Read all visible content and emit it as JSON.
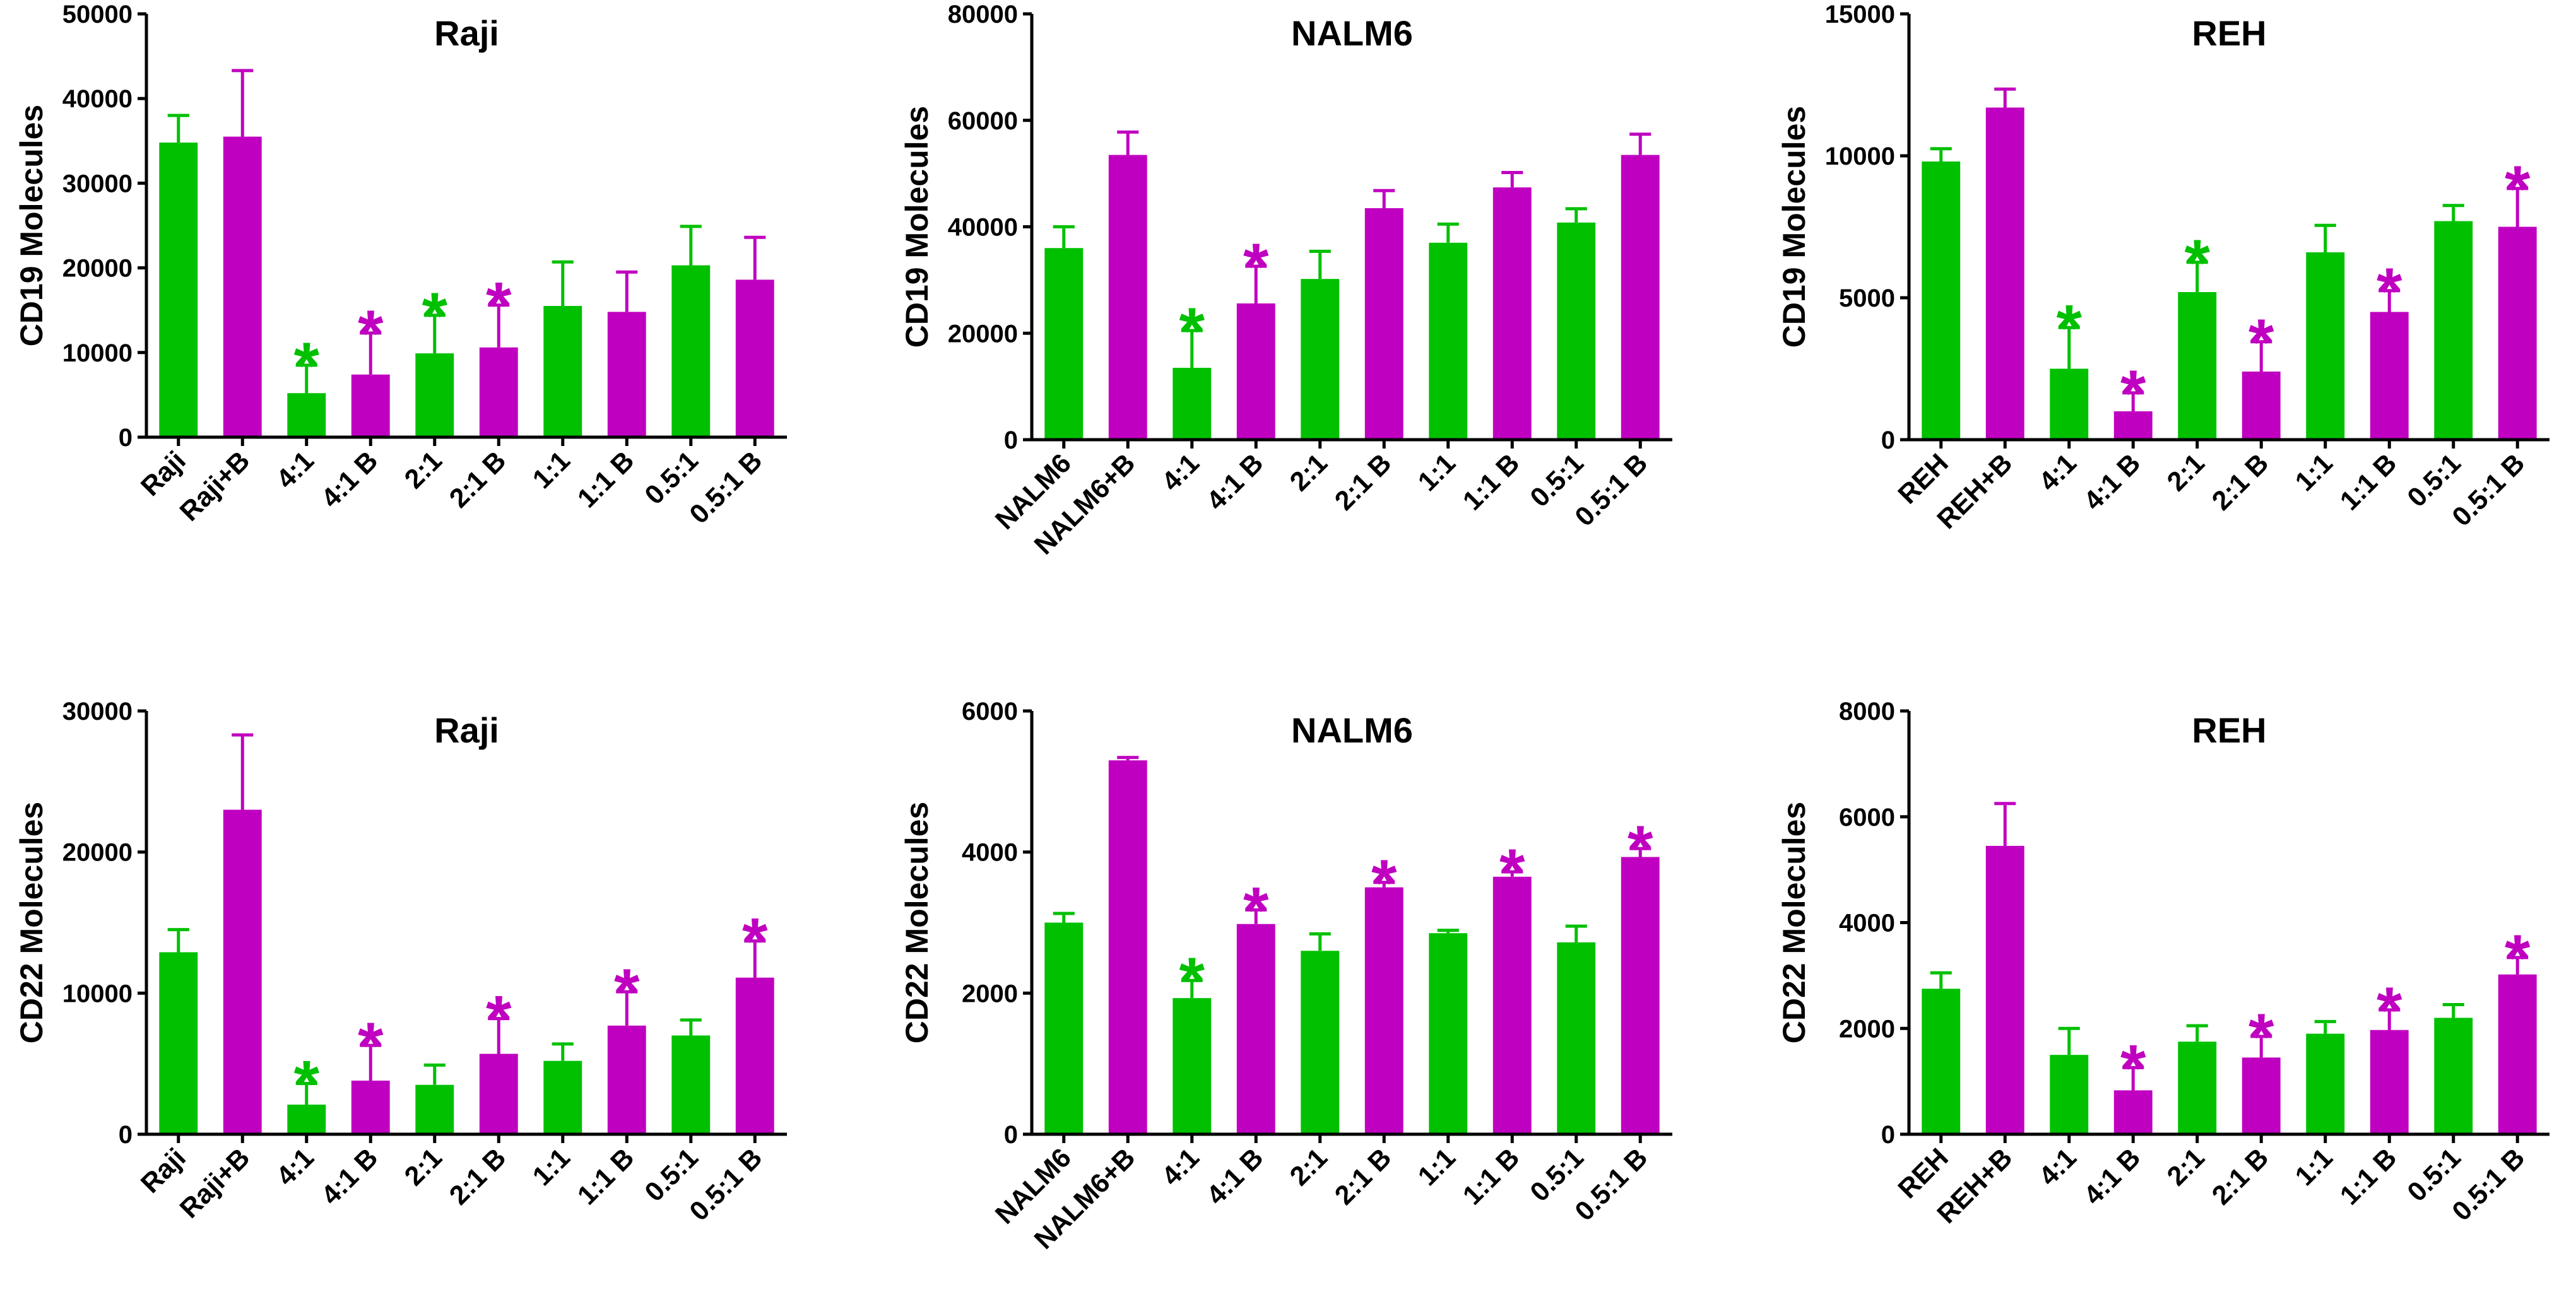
{
  "colors": {
    "green": "#00C000",
    "magenta": "#C000C0",
    "axis": "#000000"
  },
  "chart_data": [
    {
      "type": "bar",
      "title": "Raji",
      "ylabel": "CD19 Molecules",
      "xlabel": "",
      "ylim": [
        0,
        50000
      ],
      "yticks": [
        0,
        10000,
        20000,
        30000,
        40000,
        50000
      ],
      "yticklabels": [
        "0",
        "10000",
        "20000",
        "30000",
        "40000",
        "50000"
      ],
      "categories": [
        "Raji",
        "Raji+B",
        "4:1",
        "4:1 B",
        "2:1",
        "2:1 B",
        "1:1",
        "1:1 B",
        "0.5:1",
        "0.5:1 B"
      ],
      "values": [
        34800,
        35500,
        5200,
        7400,
        9900,
        10600,
        15500,
        14800,
        20300,
        18600
      ],
      "errors": [
        3200,
        7800,
        3300,
        4900,
        4500,
        5000,
        5200,
        4700,
        4600,
        5000
      ],
      "colors": [
        "green",
        "magenta",
        "green",
        "magenta",
        "green",
        "magenta",
        "green",
        "magenta",
        "green",
        "magenta"
      ],
      "significance": [
        "",
        "",
        "*",
        "*",
        "*",
        "*",
        "",
        "",
        "",
        ""
      ]
    },
    {
      "type": "bar",
      "title": "NALM6",
      "ylabel": "CD19 Molecules",
      "xlabel": "",
      "ylim": [
        0,
        80000
      ],
      "yticks": [
        0,
        20000,
        40000,
        60000,
        80000
      ],
      "yticklabels": [
        "0",
        "20000",
        "40000",
        "60000",
        "80000"
      ],
      "categories": [
        "NALM6",
        "NALM6+B",
        "4:1",
        "4:1 B",
        "2:1",
        "2:1 B",
        "1:1",
        "1:1 B",
        "0.5:1",
        "0.5:1 B"
      ],
      "values": [
        36000,
        53500,
        13500,
        25600,
        30200,
        43500,
        37000,
        47400,
        40800,
        53500
      ],
      "errors": [
        4000,
        4300,
        7000,
        7000,
        5200,
        3300,
        3500,
        2800,
        2600,
        3900
      ],
      "colors": [
        "green",
        "magenta",
        "green",
        "magenta",
        "green",
        "magenta",
        "green",
        "magenta",
        "green",
        "magenta"
      ],
      "significance": [
        "",
        "",
        "*",
        "*",
        "",
        "",
        "",
        "",
        "",
        ""
      ]
    },
    {
      "type": "bar",
      "title": "REH",
      "ylabel": "CD19 Molecules",
      "xlabel": "",
      "ylim": [
        0,
        15000
      ],
      "yticks": [
        0,
        5000,
        10000,
        15000
      ],
      "yticklabels": [
        "0",
        "5000",
        "10000",
        "15000"
      ],
      "categories": [
        "REH",
        "REH+B",
        "4:1",
        "4:1 B",
        "2:1",
        "2:1 B",
        "1:1",
        "1:1 B",
        "0.5:1",
        "0.5:1 B"
      ],
      "values": [
        9800,
        11700,
        2500,
        1000,
        5200,
        2400,
        6600,
        4500,
        7700,
        7500
      ],
      "errors": [
        450,
        650,
        1450,
        650,
        1050,
        1050,
        950,
        750,
        550,
        1350
      ],
      "colors": [
        "green",
        "magenta",
        "green",
        "magenta",
        "green",
        "magenta",
        "green",
        "magenta",
        "green",
        "magenta"
      ],
      "significance": [
        "",
        "",
        "*",
        "*",
        "*",
        "*",
        "",
        "*",
        "",
        "*"
      ]
    },
    {
      "type": "bar",
      "title": "Raji",
      "ylabel": "CD22 Molecules",
      "xlabel": "",
      "ylim": [
        0,
        30000
      ],
      "yticks": [
        0,
        10000,
        20000,
        30000
      ],
      "yticklabels": [
        "0",
        "10000",
        "20000",
        "30000"
      ],
      "categories": [
        "Raji",
        "Raji+B",
        "4:1",
        "4:1 B",
        "2:1",
        "2:1 B",
        "1:1",
        "1:1 B",
        "0.5:1",
        "0.5:1 B"
      ],
      "values": [
        12900,
        23000,
        2100,
        3800,
        3500,
        5700,
        5200,
        7700,
        7000,
        11100
      ],
      "errors": [
        1600,
        5300,
        1500,
        2500,
        1400,
        2500,
        1200,
        2400,
        1100,
        2600
      ],
      "colors": [
        "green",
        "magenta",
        "green",
        "magenta",
        "green",
        "magenta",
        "green",
        "magenta",
        "green",
        "magenta"
      ],
      "significance": [
        "",
        "",
        "*",
        "*",
        "",
        "*",
        "",
        "*",
        "",
        "*"
      ]
    },
    {
      "type": "bar",
      "title": "NALM6",
      "ylabel": "CD22 Molecules",
      "xlabel": "",
      "ylim": [
        0,
        6000
      ],
      "yticks": [
        0,
        2000,
        4000,
        6000
      ],
      "yticklabels": [
        "0",
        "2000",
        "4000",
        "6000"
      ],
      "categories": [
        "NALM6",
        "NALM6+B",
        "4:1",
        "4:1 B",
        "2:1",
        "2:1 B",
        "1:1",
        "1:1 B",
        "0.5:1",
        "0.5:1 B"
      ],
      "values": [
        3000,
        5300,
        1930,
        2980,
        2600,
        3500,
        2850,
        3650,
        2720,
        3930
      ],
      "errors": [
        130,
        40,
        250,
        200,
        240,
        70,
        40,
        70,
        230,
        120
      ],
      "colors": [
        "green",
        "magenta",
        "green",
        "magenta",
        "green",
        "magenta",
        "green",
        "magenta",
        "green",
        "magenta"
      ],
      "significance": [
        "",
        "",
        "*",
        "*",
        "",
        "*",
        "",
        "*",
        "",
        "*"
      ]
    },
    {
      "type": "bar",
      "title": "REH",
      "ylabel": "CD22 Molecules",
      "xlabel": "",
      "ylim": [
        0,
        8000
      ],
      "yticks": [
        0,
        2000,
        4000,
        6000,
        8000
      ],
      "yticklabels": [
        "0",
        "2000",
        "4000",
        "6000",
        "8000"
      ],
      "categories": [
        "REH",
        "REH+B",
        "4:1",
        "4:1 B",
        "2:1",
        "2:1 B",
        "1:1",
        "1:1 B",
        "0.5:1",
        "0.5:1 B"
      ],
      "values": [
        2750,
        5450,
        1500,
        830,
        1750,
        1450,
        1900,
        1970,
        2200,
        3020
      ],
      "errors": [
        300,
        800,
        500,
        430,
        300,
        400,
        230,
        380,
        250,
        320
      ],
      "colors": [
        "green",
        "magenta",
        "green",
        "magenta",
        "green",
        "magenta",
        "green",
        "magenta",
        "green",
        "magenta"
      ],
      "significance": [
        "",
        "",
        "",
        "*",
        "",
        "*",
        "",
        "*",
        "",
        "*"
      ]
    }
  ]
}
